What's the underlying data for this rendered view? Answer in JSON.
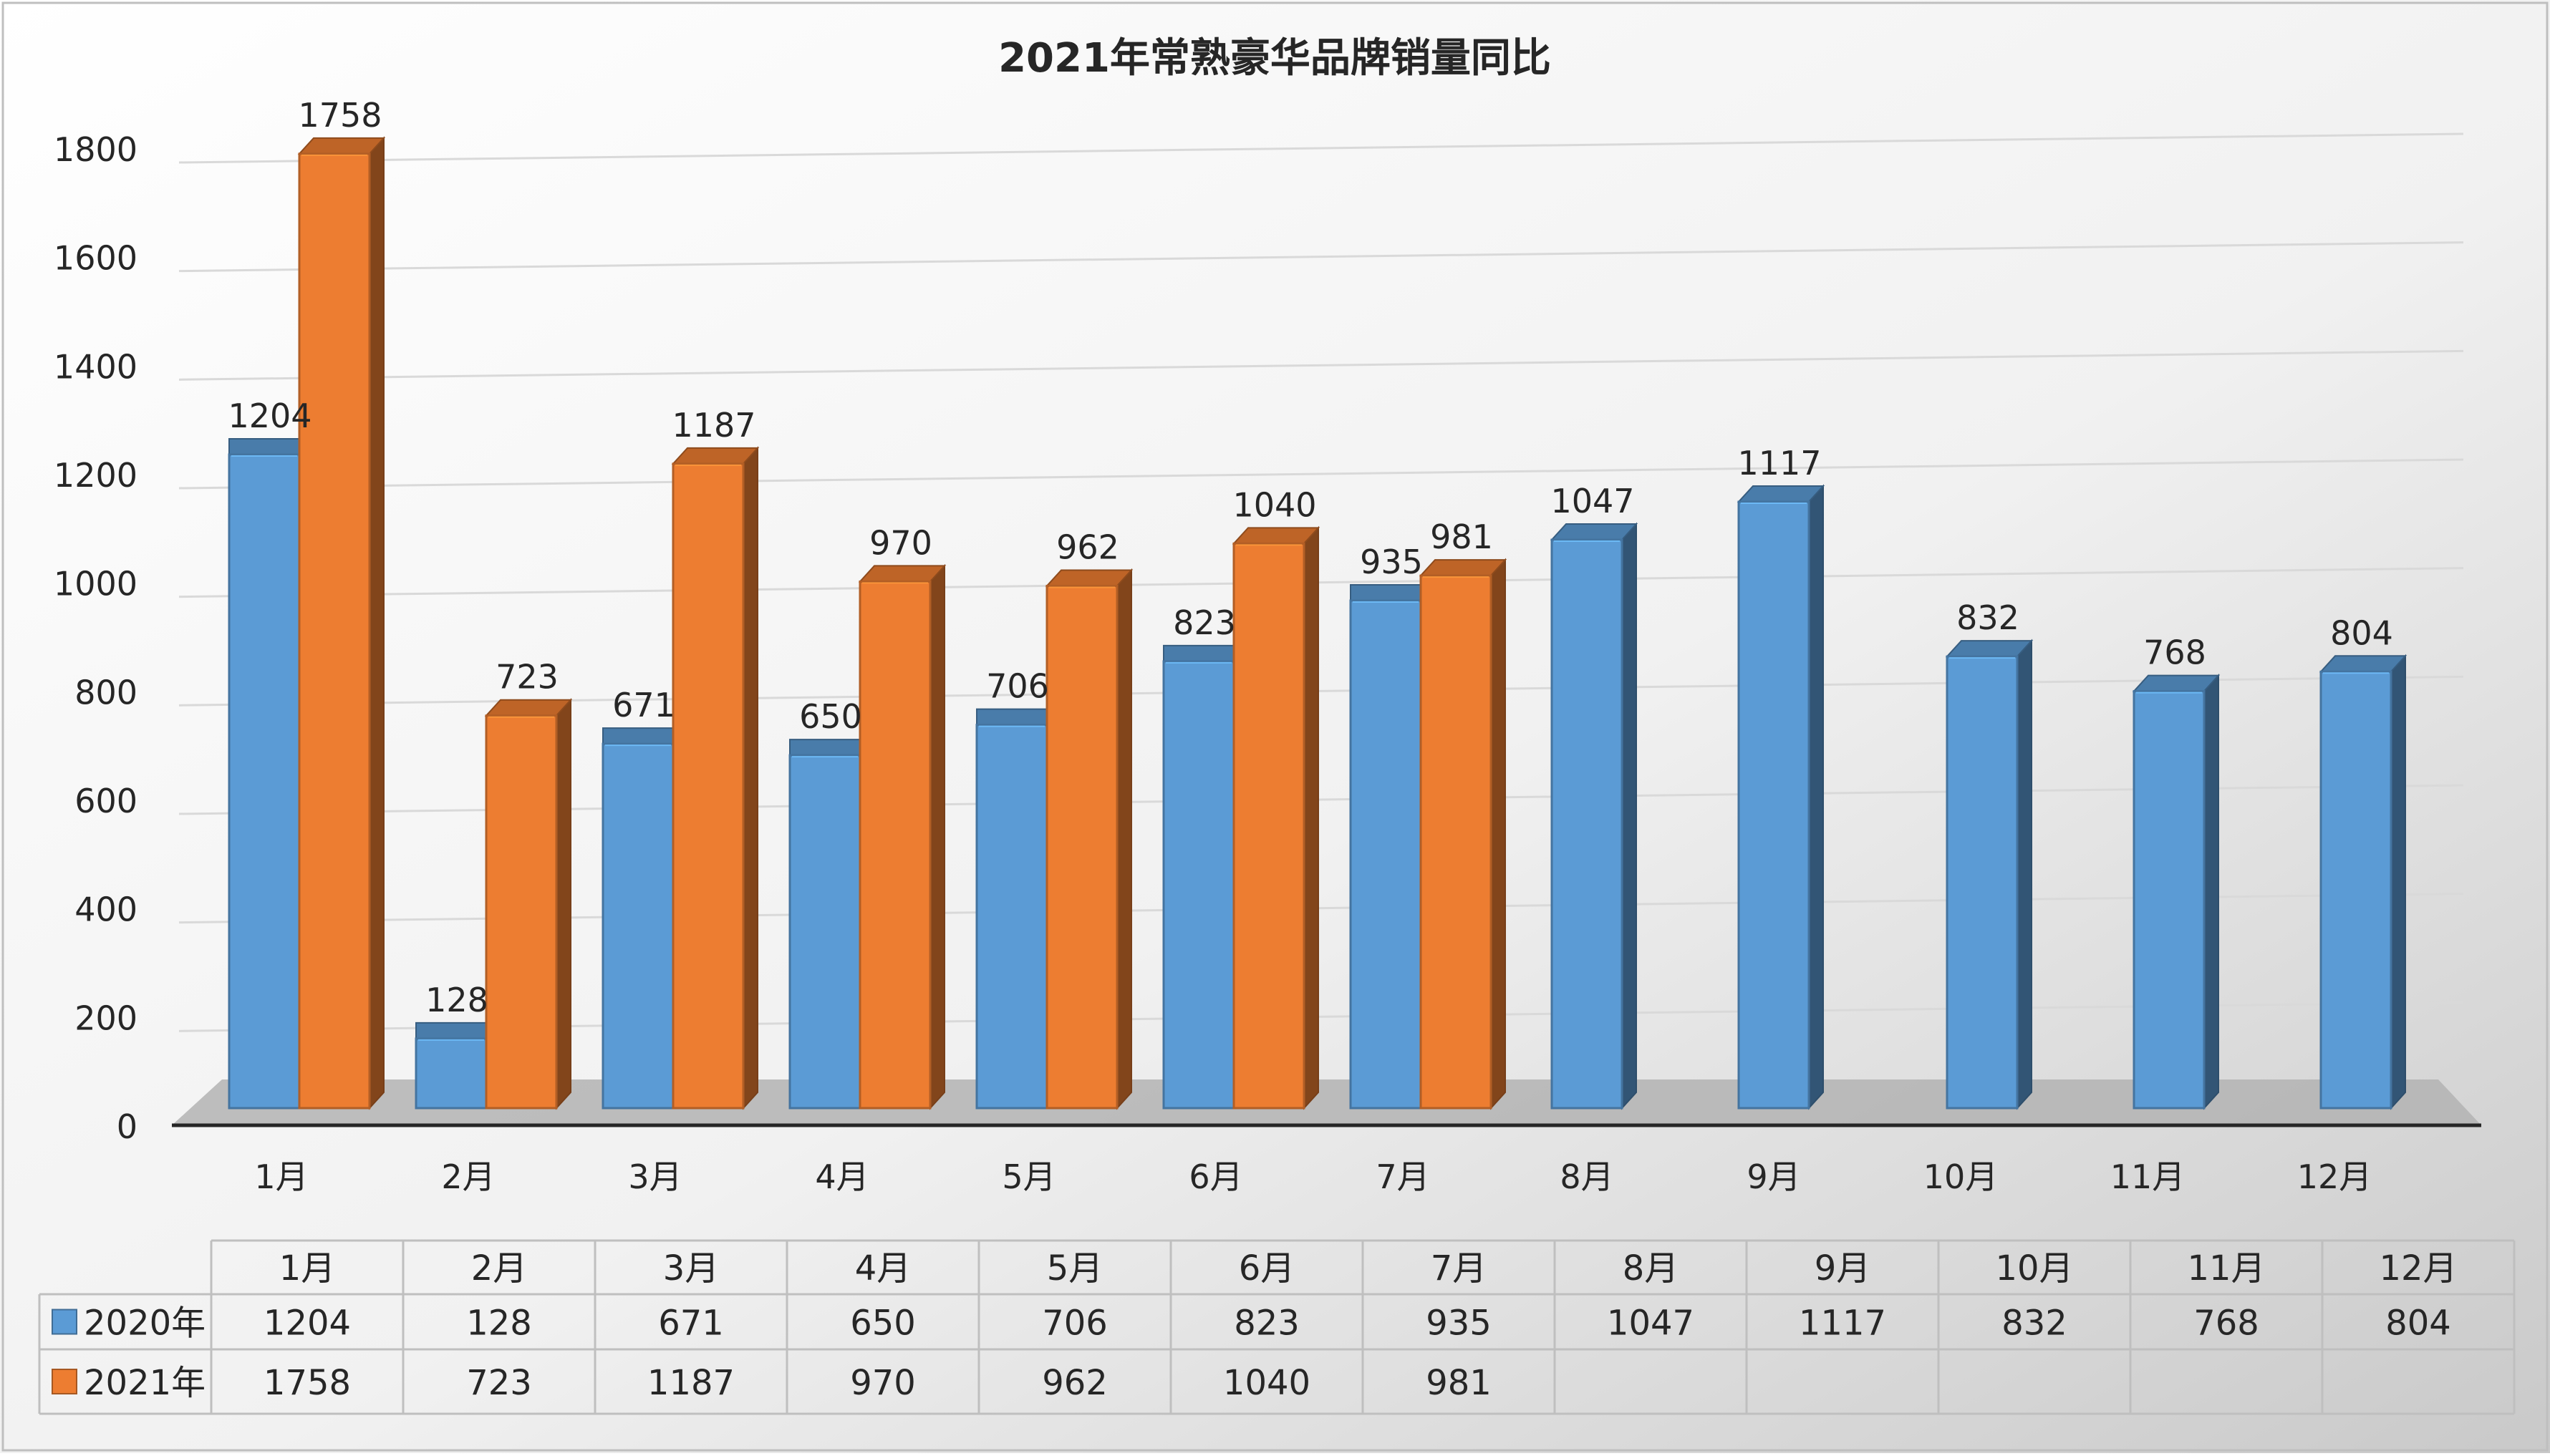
{
  "chart_data": {
    "type": "bar",
    "title": "2021年常熟豪华品牌销量同比",
    "categories": [
      "1月",
      "2月",
      "3月",
      "4月",
      "5月",
      "6月",
      "7月",
      "8月",
      "9月",
      "10月",
      "11月",
      "12月"
    ],
    "series": [
      {
        "name": "2020年",
        "color": "#5B9BD5",
        "values": [
          1204,
          128,
          671,
          650,
          706,
          823,
          935,
          1047,
          1117,
          832,
          768,
          804
        ]
      },
      {
        "name": "2021年",
        "color": "#ED7D31",
        "values": [
          1758,
          723,
          1187,
          970,
          962,
          1040,
          981,
          null,
          null,
          null,
          null,
          null
        ]
      }
    ],
    "yticks": [
      "0",
      "200",
      "400",
      "600",
      "800",
      "1000",
      "1200",
      "1400",
      "1600",
      "1800"
    ],
    "ylim": [
      0,
      1800
    ],
    "grid": true,
    "legend": "data-table"
  }
}
